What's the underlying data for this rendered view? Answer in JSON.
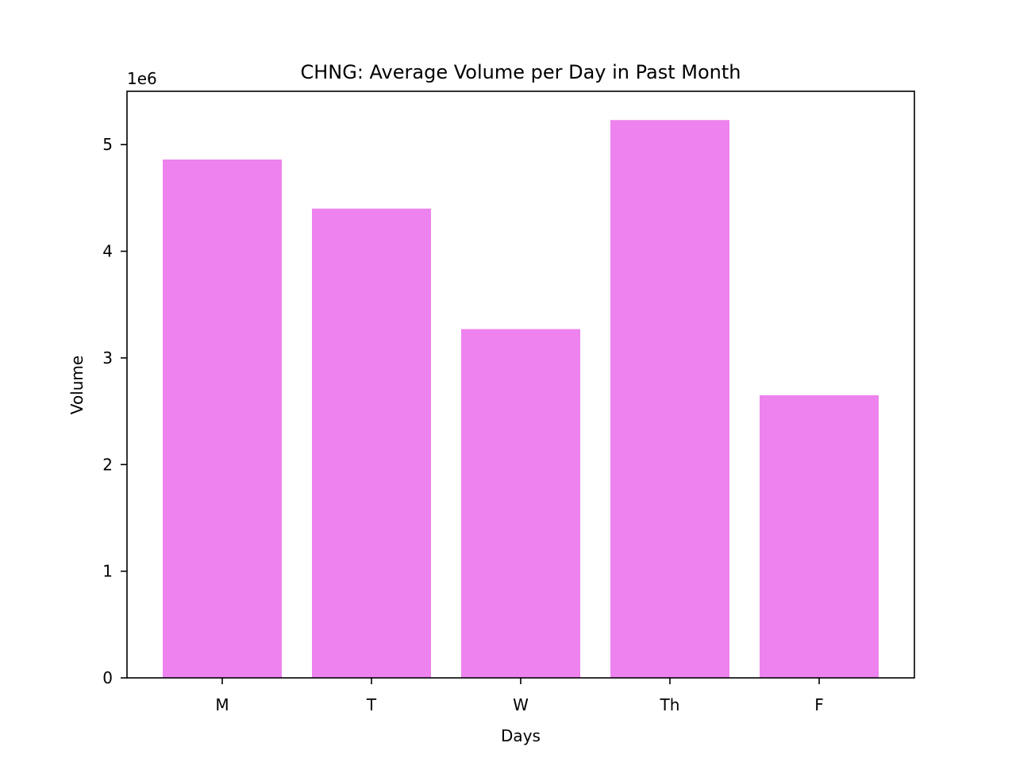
{
  "chart_data": {
    "type": "bar",
    "title": "CHNG: Average Volume per Day in Past Month",
    "xlabel": "Days",
    "ylabel": "Volume",
    "y_offset_label": "1e6",
    "categories": [
      "M",
      "T",
      "W",
      "Th",
      "F"
    ],
    "values": [
      4860000,
      4400000,
      3270000,
      5230000,
      2650000
    ],
    "ylim": [
      0,
      5500000
    ],
    "y_ticks": [
      0,
      1000000,
      2000000,
      3000000,
      4000000,
      5000000
    ],
    "y_tick_labels": [
      "0",
      "1",
      "2",
      "3",
      "4",
      "5"
    ],
    "grid": false,
    "bar_color": "#ee82ee"
  }
}
